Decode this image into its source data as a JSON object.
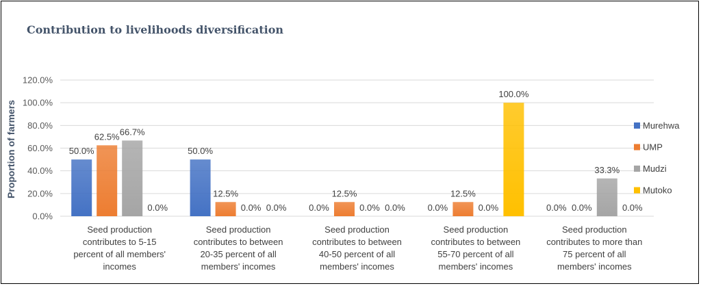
{
  "chart_data": {
    "type": "bar",
    "title": "Contribution to livelihoods diversification",
    "ylabel": "Proportion of farmers",
    "xlabel": "",
    "ylim": [
      0,
      120
    ],
    "yticks": [
      0,
      20,
      40,
      60,
      80,
      100,
      120
    ],
    "ytick_format": "percent_1dp",
    "grid": true,
    "legend_position": "right",
    "categories": [
      [
        "Seed production",
        "contributes to 5-15",
        "percent of all members'",
        "incomes"
      ],
      [
        "Seed production",
        "contributes to between",
        "20-35 percent of all",
        "members' incomes"
      ],
      [
        "Seed production",
        "contributes to between",
        "40-50 percent of all",
        "members' incomes"
      ],
      [
        "Seed production",
        "contributes to between",
        "55-70 percent of all",
        "members' incomes"
      ],
      [
        "Seed production",
        "contributes to more than",
        "75 percent of all",
        "members' incomes"
      ]
    ],
    "series": [
      {
        "name": "Murehwa",
        "color": "#4472c4",
        "values": [
          50.0,
          50.0,
          0.0,
          0.0,
          0.0
        ]
      },
      {
        "name": "UMP",
        "color": "#ed7d31",
        "values": [
          62.5,
          12.5,
          12.5,
          12.5,
          0.0
        ]
      },
      {
        "name": "Mudzi",
        "color": "#a5a5a5",
        "values": [
          66.7,
          0.0,
          0.0,
          0.0,
          33.3
        ]
      },
      {
        "name": "Mutoko",
        "color": "#ffc000",
        "values": [
          0.0,
          0.0,
          0.0,
          100.0,
          0.0
        ]
      }
    ]
  }
}
